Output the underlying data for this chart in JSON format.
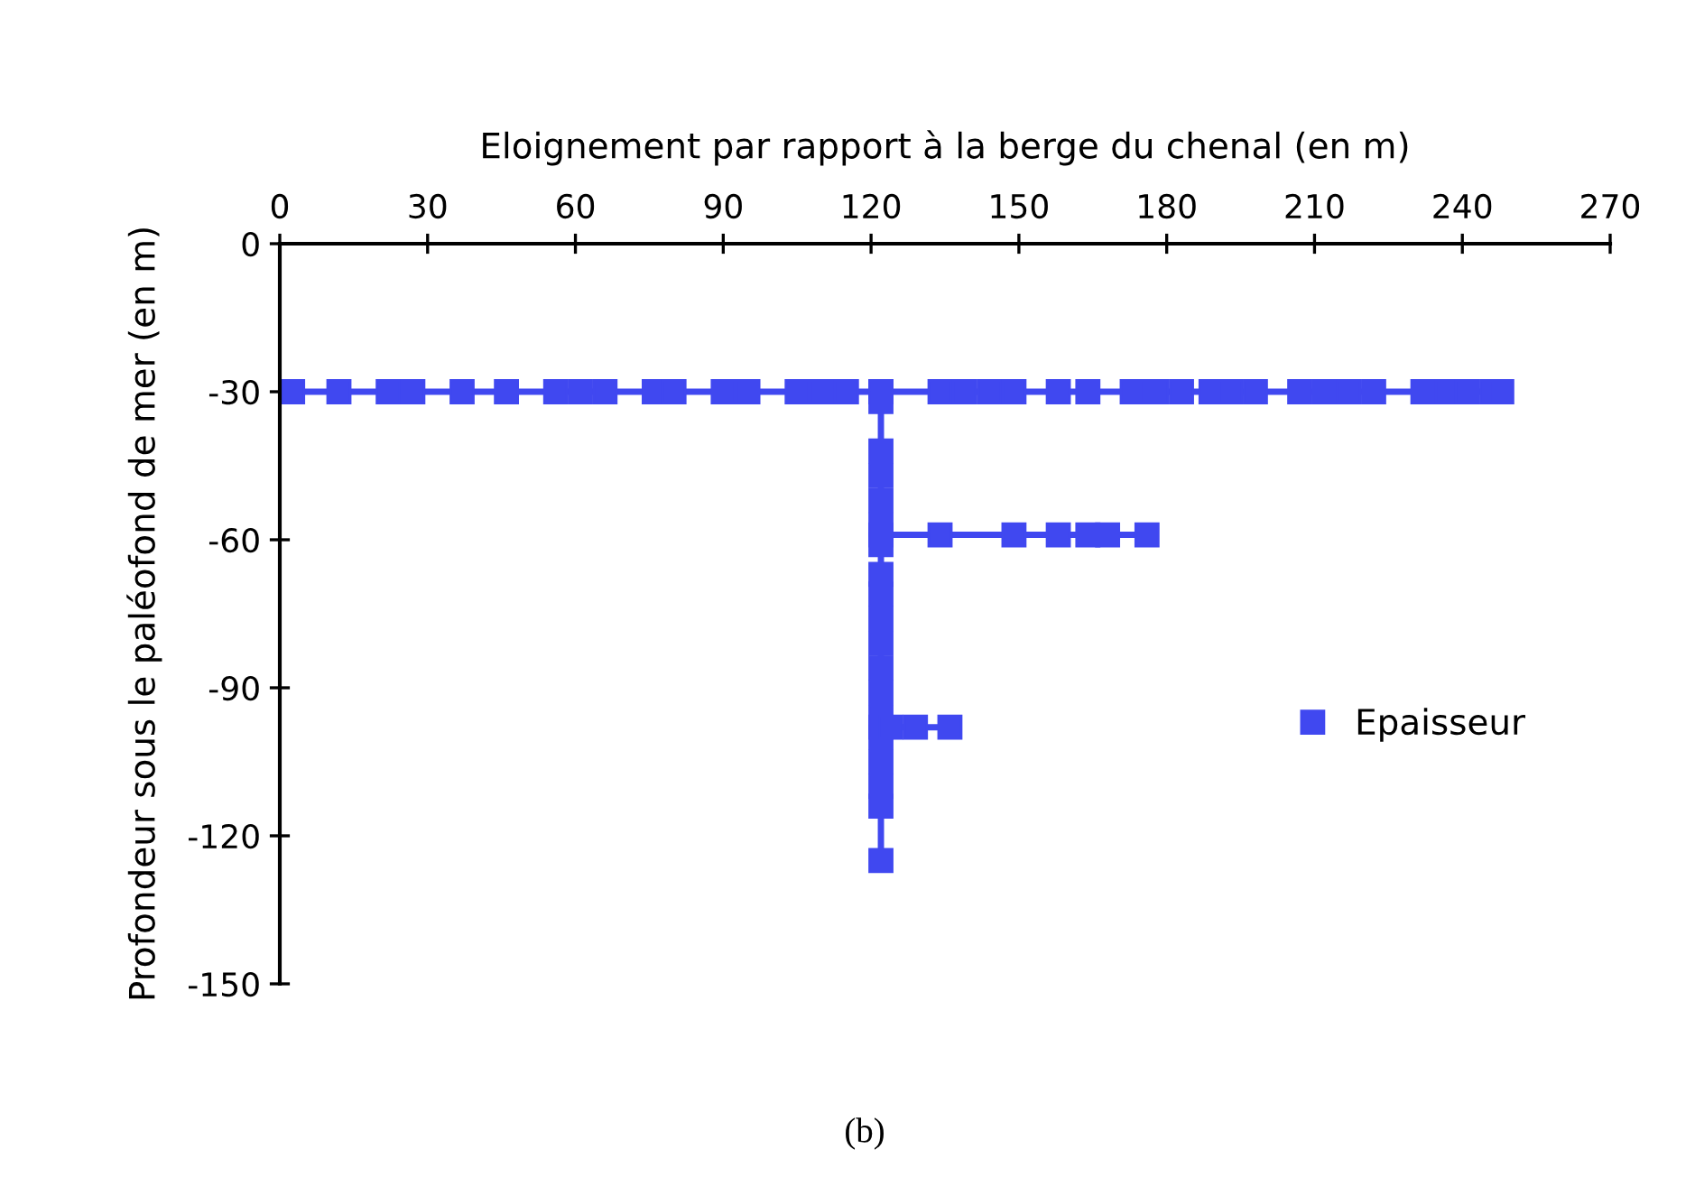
{
  "chart_data": {
    "type": "line",
    "xlabel": "Eloignement par rapport à la berge du chenal (en m)",
    "ylabel": "Profondeur sous le paléofond de mer (en m)",
    "xlim": [
      0,
      270
    ],
    "xticks": [
      0,
      30,
      60,
      90,
      120,
      150,
      180,
      210,
      240,
      270
    ],
    "ylim": [
      -150,
      0
    ],
    "yticks": [
      0,
      -30,
      -60,
      -90,
      -120,
      -150
    ],
    "series": [
      {
        "name": "Epaisseur",
        "color": "#4048f0",
        "x": [
          0,
          2.6,
          12,
          22,
          27,
          37,
          46,
          56,
          61,
          66,
          76,
          80,
          90,
          95,
          105,
          110,
          115,
          122,
          134,
          139,
          144,
          149,
          158,
          164,
          173,
          178,
          183,
          189,
          193,
          198,
          207,
          212,
          217,
          222,
          232,
          237,
          241,
          246,
          248,
          null,
          122,
          122,
          122,
          122,
          122,
          122,
          122,
          122,
          122,
          122,
          122,
          122,
          122,
          122,
          122,
          122,
          122,
          122,
          122,
          null,
          122,
          134,
          149,
          158,
          164,
          168,
          176,
          null,
          122,
          124,
          129,
          136
        ],
        "values": [
          -30,
          -30,
          -30,
          -30,
          -30,
          -30,
          -30,
          -30,
          -30,
          -30,
          -30,
          -30,
          -30,
          -30,
          -30,
          -30,
          -30,
          -30,
          -30,
          -30,
          -30,
          -30,
          -30,
          -30,
          -30,
          -30,
          -30,
          -30,
          -30,
          -30,
          -30,
          -30,
          -30,
          -30,
          -30,
          -30,
          -30,
          -30,
          -30,
          null,
          -30,
          -32,
          -42,
          -47,
          -52,
          -57,
          -61,
          -67,
          -71,
          -76,
          -81,
          -86,
          -91,
          -96,
          -100,
          -105,
          -110,
          -114,
          -125,
          null,
          -59,
          -59,
          -59,
          -59,
          -59,
          -59,
          -59,
          null,
          -98,
          -98,
          -98,
          -98
        ]
      }
    ],
    "marker": "square",
    "line_style": "solid",
    "legend": "right",
    "grid": false,
    "annotations": [
      "(b)"
    ]
  }
}
